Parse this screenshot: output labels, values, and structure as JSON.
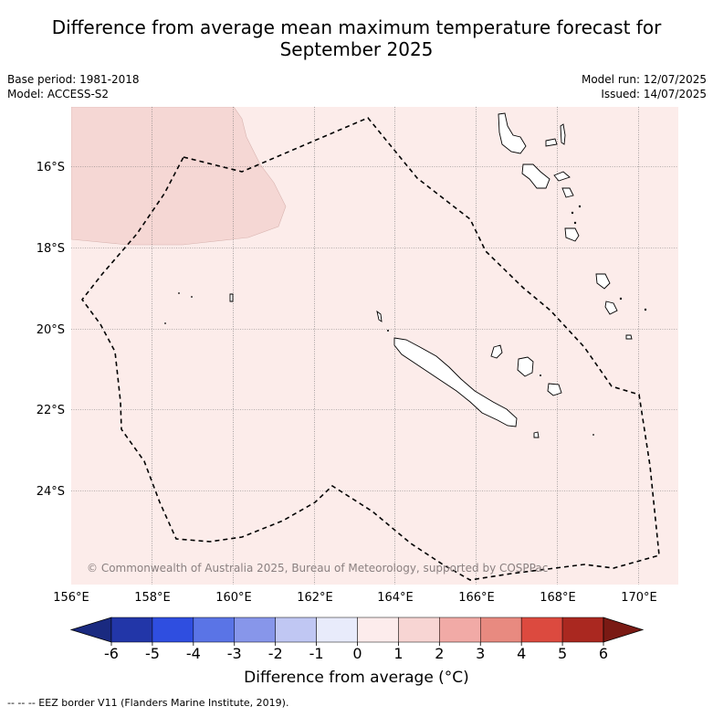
{
  "title_line1": "Difference from average mean maximum temperature forecast for",
  "title_line2": "September 2025",
  "base_period": "Base period: 1981-2018",
  "model": "Model: ACCESS-S2",
  "model_run": "Model run: 12/07/2025",
  "issued": "Issued: 14/07/2025",
  "lat_labels": [
    "16°S",
    "18°S",
    "20°S",
    "22°S",
    "24°S"
  ],
  "lon_labels": [
    "156°E",
    "158°E",
    "160°E",
    "162°E",
    "164°E",
    "166°E",
    "168°E",
    "170°E"
  ],
  "copyright": "© Commonwealth of Australia 2025, Bureau of Meteorology, supported by COSPPac",
  "colorbar": {
    "ticks": [
      "-6",
      "-5",
      "-4",
      "-3",
      "-2",
      "-1",
      "0",
      "1",
      "2",
      "3",
      "4",
      "5",
      "6"
    ],
    "colors": [
      "#2236a8",
      "#2f4ee0",
      "#5a74e6",
      "#8796ea",
      "#c0c7f3",
      "#e8ebfb",
      "#fdecec",
      "#f7d5d3",
      "#f1aaa6",
      "#e88a80",
      "#dc4a3f",
      "#aa2820"
    ],
    "extend_low_color": "#1a2a80",
    "extend_high_color": "#7a1a14",
    "label": "Difference from average (°C)"
  },
  "map": {
    "background_color": "#fcecea",
    "anomaly_patch_color": "#f5d7d4"
  },
  "footnote": "-- -- -- EEZ border V11 (Flanders Marine Institute, 2019)."
}
